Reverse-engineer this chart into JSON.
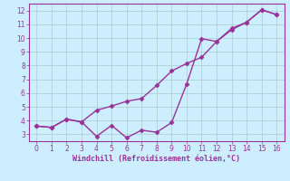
{
  "x": [
    0,
    1,
    2,
    3,
    4,
    5,
    6,
    7,
    8,
    9,
    10,
    11,
    12,
    13,
    14,
    15,
    16
  ],
  "line1_y": [
    3.6,
    3.5,
    4.1,
    3.9,
    2.85,
    3.65,
    2.75,
    3.3,
    3.15,
    3.85,
    6.65,
    9.95,
    9.75,
    10.6,
    11.15,
    12.05,
    11.7
  ],
  "line2_y": [
    3.6,
    3.5,
    4.1,
    3.9,
    4.75,
    5.05,
    5.4,
    5.6,
    6.55,
    7.6,
    8.15,
    8.6,
    9.75,
    10.7,
    11.15,
    12.05,
    11.7
  ],
  "color": "#993399",
  "bg_color": "#cceeff",
  "grid_color": "#aacccc",
  "xlabel": "Windchill (Refroidissement éolien,°C)",
  "xlabel_color": "#993399",
  "ylabel_ticks": [
    3,
    4,
    5,
    6,
    7,
    8,
    9,
    10,
    11,
    12
  ],
  "xlim": [
    -0.5,
    16.5
  ],
  "ylim": [
    2.5,
    12.5
  ],
  "xticks": [
    0,
    1,
    2,
    3,
    4,
    5,
    6,
    7,
    8,
    9,
    10,
    11,
    12,
    13,
    14,
    15,
    16
  ],
  "marker": "D",
  "marker_size": 2.5,
  "line_width": 1.0
}
